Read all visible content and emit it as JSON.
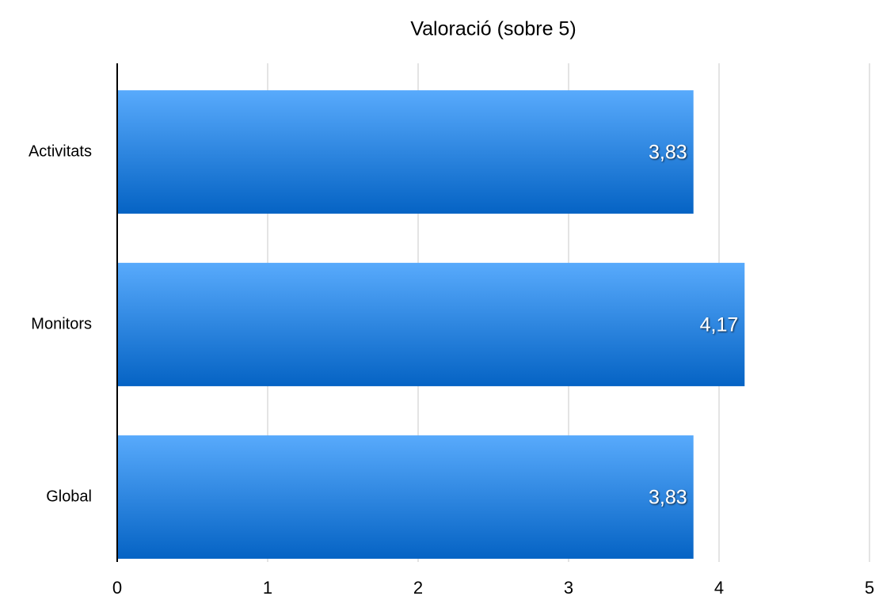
{
  "chart_data": {
    "type": "bar",
    "orientation": "horizontal",
    "title": "Valoració (sobre 5)",
    "categories": [
      "Activitats",
      "Monitors",
      "Global"
    ],
    "values": [
      3.83,
      4.17,
      3.83
    ],
    "value_labels": [
      "3,83",
      "4,17",
      "3,83"
    ],
    "color": "#2f86e0",
    "xlim": [
      0,
      5
    ],
    "xticks": [
      0,
      1,
      2,
      3,
      4,
      5
    ],
    "grid": true
  }
}
